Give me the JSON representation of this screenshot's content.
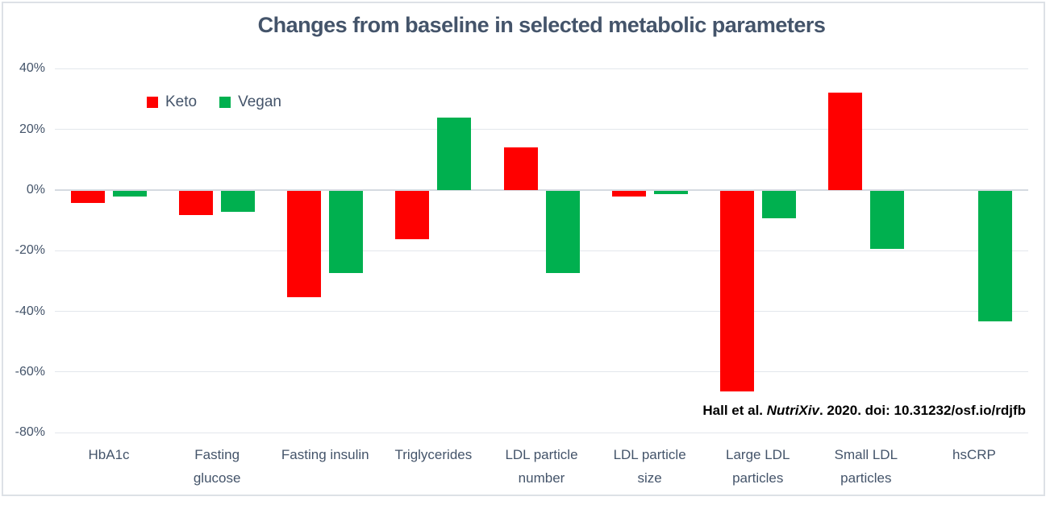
{
  "title": "Changes from baseline in selected metabolic parameters",
  "legend": {
    "items": [
      {
        "label": "Keto",
        "color": "#FF0000"
      },
      {
        "label": "Vegan",
        "color": "#00B04F"
      }
    ]
  },
  "annotation": {
    "prefix": "Hall et al. ",
    "italic": "NutriXiv",
    "suffix": ". 2020. doi: 10.31232/osf.io/rdjfb"
  },
  "chart_data": {
    "type": "bar",
    "title": "Changes from baseline in selected metabolic parameters",
    "categories": [
      "HbA1c",
      "Fasting glucose",
      "Fasting insulin",
      "Triglycerides",
      "LDL particle number",
      "LDL particle size",
      "Large LDL particles",
      "Small LDL particles",
      "hsCRP"
    ],
    "series": [
      {
        "name": "Keto",
        "color": "#FF0000",
        "values": [
          -4,
          -8,
          -35,
          -16,
          14,
          -2,
          -66,
          32,
          0
        ]
      },
      {
        "name": "Vegan",
        "color": "#00B04F",
        "values": [
          -2,
          -7,
          -27,
          24,
          -27,
          -1,
          -9,
          -19,
          -43
        ]
      }
    ],
    "unit": "percent",
    "xlabel": "",
    "ylabel": "",
    "ylim": [
      -80,
      40
    ],
    "yticks": [
      40,
      20,
      0,
      -20,
      -40,
      -60,
      -80
    ],
    "ytick_suffix": "%",
    "grid": true,
    "legend_position": "inside-top-left",
    "annotation": "Hall et al. NutriXiv. 2020. doi: 10.31232/osf.io/rdjfb"
  },
  "colors": {
    "keto": "#FF0000",
    "vegan": "#00B04F",
    "axis_text": "#44546A",
    "title_text": "#44546A",
    "gridline": "#E3E7EC",
    "zero_line": "#D5DAE1",
    "annotation_text": "#000000",
    "frame_border": "#DDE1E6"
  }
}
